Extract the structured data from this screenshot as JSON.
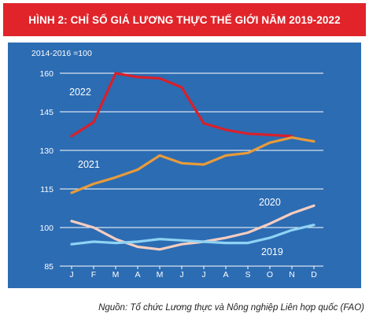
{
  "header": {
    "title": "HÌNH 2: CHỈ SỐ GIÁ LƯƠNG THỰC THẾ GIỚI NĂM 2019-2022"
  },
  "footer": {
    "source": "Nguồn: Tổ chức Lương thực và Nông nghiệp Liên hợp quốc (FAO)"
  },
  "colors": {
    "title_bg": "#e0242a",
    "plot_bg": "#2c6cb3",
    "grid": "#ffffff",
    "s2019": "#8fd3f4",
    "s2020": "#f6cdc0",
    "s2021": "#e89b3a",
    "s2022": "#d8202a"
  },
  "chart_data": {
    "type": "line",
    "base_label": "2014-2016 =100",
    "categories": [
      "J",
      "F",
      "M",
      "A",
      "M",
      "J",
      "J",
      "A",
      "S",
      "O",
      "N",
      "D"
    ],
    "ylim": [
      85,
      160
    ],
    "yticks": [
      85,
      100,
      115,
      130,
      145,
      160
    ],
    "grid": true,
    "series": [
      {
        "name": "2022",
        "color_key": "s2022",
        "values": [
          135.5,
          141,
          160,
          158.5,
          158,
          154.5,
          140.5,
          138,
          136.5,
          136,
          135.5,
          null
        ]
      },
      {
        "name": "2021",
        "color_key": "s2021",
        "values": [
          113.5,
          117,
          119.5,
          122.5,
          128,
          125,
          124.5,
          128,
          129,
          133,
          135,
          133.5
        ]
      },
      {
        "name": "2020",
        "color_key": "s2020",
        "values": [
          102.5,
          100,
          95.5,
          92.5,
          91.5,
          93.5,
          94.5,
          96,
          98,
          101.5,
          105.5,
          108.5
        ]
      },
      {
        "name": "2019",
        "color_key": "s2019",
        "values": [
          93.5,
          94.5,
          94,
          94.5,
          95.5,
          95,
          94.5,
          94,
          94,
          96,
          99,
          101
        ]
      }
    ]
  }
}
